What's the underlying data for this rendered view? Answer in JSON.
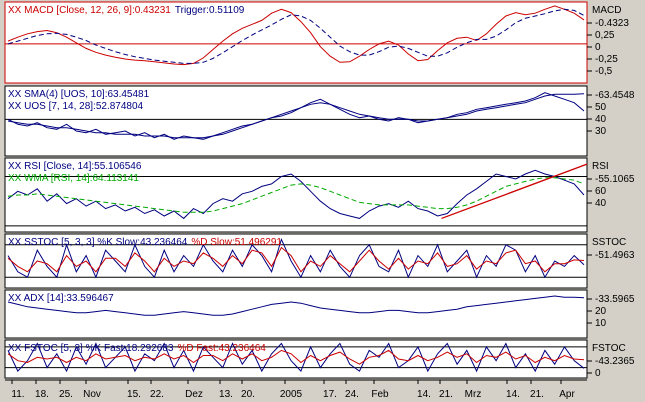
{
  "chart_data": [
    {
      "type": "line",
      "id": "macd",
      "legend": [
        {
          "text": "XX MACD [Close, 12, 26, 9]:0.43231",
          "color": "#cc0000"
        },
        {
          "text": "Trigger:0.51109",
          "color": "#000080"
        }
      ],
      "side_label": "MACD",
      "value_label": "0.4323",
      "yticks": [
        "0,25",
        "0",
        "-0,25",
        "-0,5"
      ],
      "ylim": [
        -0.7,
        0.75
      ],
      "hlines": [
        0
      ],
      "series": [
        {
          "color": "#cc0000",
          "dash": false,
          "values": [
            0.05,
            0.12,
            0.18,
            0.22,
            0.24,
            0.2,
            0.12,
            0.02,
            -0.08,
            -0.15,
            -0.2,
            -0.24,
            -0.27,
            -0.29,
            -0.3,
            -0.32,
            -0.34,
            -0.36,
            -0.37,
            -0.35,
            -0.25,
            -0.1,
            0.05,
            0.18,
            0.28,
            0.35,
            0.42,
            0.55,
            0.62,
            0.56,
            0.4,
            0.2,
            -0.05,
            -0.22,
            -0.33,
            -0.32,
            -0.22,
            -0.1,
            0.0,
            0.05,
            -0.02,
            -0.18,
            -0.3,
            -0.28,
            -0.12,
            0.02,
            0.1,
            0.12,
            0.06,
            0.18,
            0.35,
            0.5,
            0.56,
            0.52,
            0.55,
            0.62,
            0.68,
            0.62,
            0.55,
            0.43
          ]
        },
        {
          "color": "#000080",
          "dash": true,
          "values": [
            0.0,
            0.05,
            0.1,
            0.15,
            0.18,
            0.19,
            0.17,
            0.12,
            0.06,
            -0.02,
            -0.08,
            -0.14,
            -0.19,
            -0.23,
            -0.26,
            -0.29,
            -0.31,
            -0.33,
            -0.35,
            -0.35,
            -0.33,
            -0.26,
            -0.16,
            -0.05,
            0.06,
            0.16,
            0.25,
            0.34,
            0.44,
            0.52,
            0.5,
            0.42,
            0.28,
            0.12,
            -0.04,
            -0.14,
            -0.2,
            -0.2,
            -0.14,
            -0.06,
            -0.04,
            -0.08,
            -0.15,
            -0.22,
            -0.22,
            -0.16,
            -0.06,
            0.02,
            0.08,
            0.08,
            0.14,
            0.25,
            0.38,
            0.46,
            0.5,
            0.54,
            0.59,
            0.62,
            0.6,
            0.51
          ]
        }
      ]
    },
    {
      "type": "line",
      "id": "uos",
      "legend": [
        {
          "text": "XX SMA(4) [UOS, 10]:63.45481",
          "color": "#000080"
        },
        {
          "text": "XX UOS [7, 14, 28]:52.874804",
          "color": "#000080"
        }
      ],
      "value_label": "63.4548",
      "yticks": [
        "50",
        "40",
        "30"
      ],
      "ylim": [
        26,
        68
      ],
      "hlines": [
        48
      ],
      "series": [
        {
          "color": "#000080",
          "dash": false,
          "values": [
            48,
            45,
            44,
            46,
            43,
            42,
            45,
            41,
            40,
            42,
            39,
            40,
            41,
            38,
            40,
            37,
            39,
            36,
            38,
            37,
            36,
            38,
            40,
            42,
            44,
            45,
            47,
            49,
            50,
            52,
            55,
            58,
            60,
            57,
            54,
            51,
            49,
            50,
            48,
            47,
            49,
            48,
            46,
            47,
            48,
            49,
            51,
            52,
            54,
            55,
            56,
            57,
            58,
            59,
            61,
            64,
            62,
            60,
            58,
            53
          ]
        },
        {
          "color": "#000080",
          "dash": false,
          "values": [
            47,
            46,
            45,
            45,
            44,
            43,
            43,
            42,
            41,
            40,
            40,
            39,
            39,
            39,
            38,
            38,
            38,
            37,
            37,
            37,
            37,
            38,
            39,
            41,
            43,
            45,
            47,
            49,
            51,
            53,
            55,
            57,
            58,
            57,
            55,
            53,
            51,
            50,
            49,
            48,
            48,
            48,
            47,
            47,
            48,
            49,
            50,
            51,
            53,
            54,
            55,
            56,
            57,
            58,
            60,
            62,
            63,
            63,
            63,
            63.4
          ]
        }
      ]
    },
    {
      "type": "line",
      "id": "rsi",
      "legend": [
        {
          "text": "XX RSI [Close, 14]:55.106546",
          "color": "#000080"
        },
        {
          "text": "XX WMA [RSI, 14]:64.113141",
          "color": "#00aa00"
        }
      ],
      "side_label": "RSI",
      "value_label": "55.1065",
      "yticks": [
        "60",
        "40"
      ],
      "ylim": [
        25,
        85
      ],
      "hlines": [
        70,
        30
      ],
      "series": [
        {
          "color": "#000080",
          "dash": false,
          "values": [
            52,
            58,
            55,
            60,
            50,
            56,
            48,
            52,
            46,
            50,
            44,
            47,
            42,
            45,
            40,
            43,
            38,
            42,
            36,
            44,
            40,
            48,
            52,
            50,
            56,
            58,
            62,
            64,
            70,
            72,
            66,
            58,
            50,
            44,
            40,
            38,
            36,
            42,
            46,
            48,
            45,
            50,
            44,
            42,
            38,
            40,
            48,
            55,
            60,
            66,
            72,
            70,
            68,
            72,
            75,
            72,
            70,
            67,
            64,
            55
          ]
        },
        {
          "color": "#00aa00",
          "dash": true,
          "values": [
            54,
            55,
            55,
            56,
            55,
            54,
            53,
            52,
            51,
            50,
            49,
            48,
            47,
            46,
            45,
            44,
            43,
            42,
            41,
            41,
            41,
            42,
            44,
            46,
            48,
            51,
            54,
            57,
            60,
            63,
            64,
            63,
            61,
            58,
            55,
            52,
            49,
            48,
            47,
            47,
            47,
            47,
            46,
            45,
            44,
            44,
            45,
            47,
            50,
            54,
            58,
            62,
            64,
            66,
            68,
            69,
            69,
            68,
            67,
            64
          ]
        }
      ],
      "trendline": {
        "color": "#cc0000",
        "from": [
          0.75,
          36
        ],
        "to": [
          1.0,
          80
        ]
      }
    },
    {
      "type": "line",
      "id": "sstoc",
      "legend": [
        {
          "text": "XX SSTOC [5, 3, 3] %K Slow:43.236464",
          "color": "#000080"
        },
        {
          "text": "%D Slow:51.496291",
          "color": "#cc0000"
        }
      ],
      "side_label": "SSTOC",
      "value_label": "51.4963",
      "yticks": [],
      "ylim": [
        0,
        100
      ],
      "hlines": [
        80,
        20
      ],
      "series": [
        {
          "color": "#000080",
          "dash": false,
          "values": [
            60,
            30,
            20,
            70,
            40,
            20,
            80,
            30,
            60,
            20,
            70,
            50,
            30,
            80,
            40,
            20,
            70,
            30,
            60,
            40,
            80,
            50,
            30,
            70,
            40,
            80,
            60,
            30,
            90,
            50,
            20,
            60,
            30,
            70,
            40,
            20,
            60,
            80,
            40,
            30,
            70,
            20,
            60,
            40,
            80,
            30,
            50,
            70,
            20,
            60,
            40,
            80,
            70,
            30,
            60,
            20,
            50,
            40,
            60,
            43
          ]
        },
        {
          "color": "#cc0000",
          "dash": false,
          "values": [
            55,
            40,
            30,
            50,
            45,
            30,
            60,
            40,
            50,
            30,
            55,
            55,
            40,
            65,
            50,
            30,
            55,
            40,
            50,
            45,
            65,
            55,
            40,
            60,
            45,
            70,
            65,
            40,
            75,
            60,
            30,
            50,
            40,
            60,
            45,
            30,
            50,
            70,
            50,
            35,
            55,
            35,
            50,
            45,
            65,
            40,
            45,
            60,
            35,
            50,
            45,
            65,
            70,
            45,
            50,
            30,
            45,
            45,
            52,
            51
          ]
        }
      ]
    },
    {
      "type": "line",
      "id": "adx",
      "legend": [
        {
          "text": "XX ADX [14]:33.596467",
          "color": "#000080"
        }
      ],
      "value_label": "33.5965",
      "yticks": [
        "20",
        "10"
      ],
      "ylim": [
        0,
        40
      ],
      "hlines": [],
      "series": [
        {
          "color": "#000080",
          "dash": false,
          "values": [
            30,
            28,
            26,
            25,
            24,
            23,
            22,
            21,
            21,
            22,
            23,
            22,
            21,
            20,
            19,
            19,
            20,
            21,
            22,
            21,
            20,
            19,
            19,
            20,
            22,
            24,
            26,
            28,
            29,
            30,
            29,
            27,
            25,
            24,
            23,
            22,
            21,
            21,
            22,
            23,
            23,
            22,
            21,
            21,
            22,
            23,
            24,
            26,
            27,
            28,
            29,
            30,
            31,
            32,
            33,
            34,
            35,
            34,
            34,
            33.6
          ]
        }
      ]
    },
    {
      "type": "line",
      "id": "fstoc",
      "legend": [
        {
          "text": "XX FSTOC [5, 3] %K Fast:18.292683",
          "color": "#000080"
        },
        {
          "text": "%D Fast:43.236464",
          "color": "#cc0000"
        }
      ],
      "side_label": "FSTOC",
      "value_label": "43.2365",
      "yticks": [
        "0"
      ],
      "ylim": [
        -10,
        100
      ],
      "hlines": [
        80,
        20
      ],
      "series": [
        {
          "color": "#000080",
          "dash": false,
          "values": [
            70,
            10,
            40,
            90,
            20,
            60,
            10,
            80,
            30,
            90,
            20,
            50,
            80,
            10,
            60,
            40,
            90,
            20,
            70,
            10,
            80,
            50,
            20,
            90,
            30,
            70,
            10,
            60,
            90,
            40,
            10,
            80,
            20,
            60,
            90,
            30,
            10,
            70,
            50,
            90,
            20,
            40,
            80,
            10,
            60,
            90,
            30,
            70,
            10,
            80,
            40,
            90,
            20,
            60,
            10,
            70,
            30,
            80,
            40,
            18
          ]
        },
        {
          "color": "#cc0000",
          "dash": false,
          "values": [
            60,
            40,
            35,
            50,
            45,
            50,
            35,
            50,
            40,
            60,
            45,
            50,
            55,
            40,
            50,
            45,
            60,
            45,
            55,
            35,
            55,
            55,
            40,
            60,
            45,
            60,
            40,
            50,
            70,
            60,
            35,
            55,
            40,
            55,
            65,
            45,
            30,
            50,
            55,
            70,
            45,
            40,
            55,
            40,
            50,
            65,
            50,
            60,
            35,
            55,
            50,
            65,
            45,
            55,
            35,
            50,
            40,
            55,
            45,
            43
          ]
        }
      ]
    }
  ],
  "x_axis": {
    "labels": [
      "11.",
      "18.",
      "25.",
      "Nov",
      "15.",
      "22.",
      "Dez",
      "13.",
      "20.",
      "2005",
      "17.",
      "24.",
      "Feb",
      "14.",
      "21.",
      "Mrz",
      "14.",
      "21.",
      "Apr"
    ]
  },
  "colors": {
    "background": "#d4d0c8",
    "plot_bg": "#ffffff",
    "frame": "#000000",
    "macd_frame": "#cc0000"
  }
}
